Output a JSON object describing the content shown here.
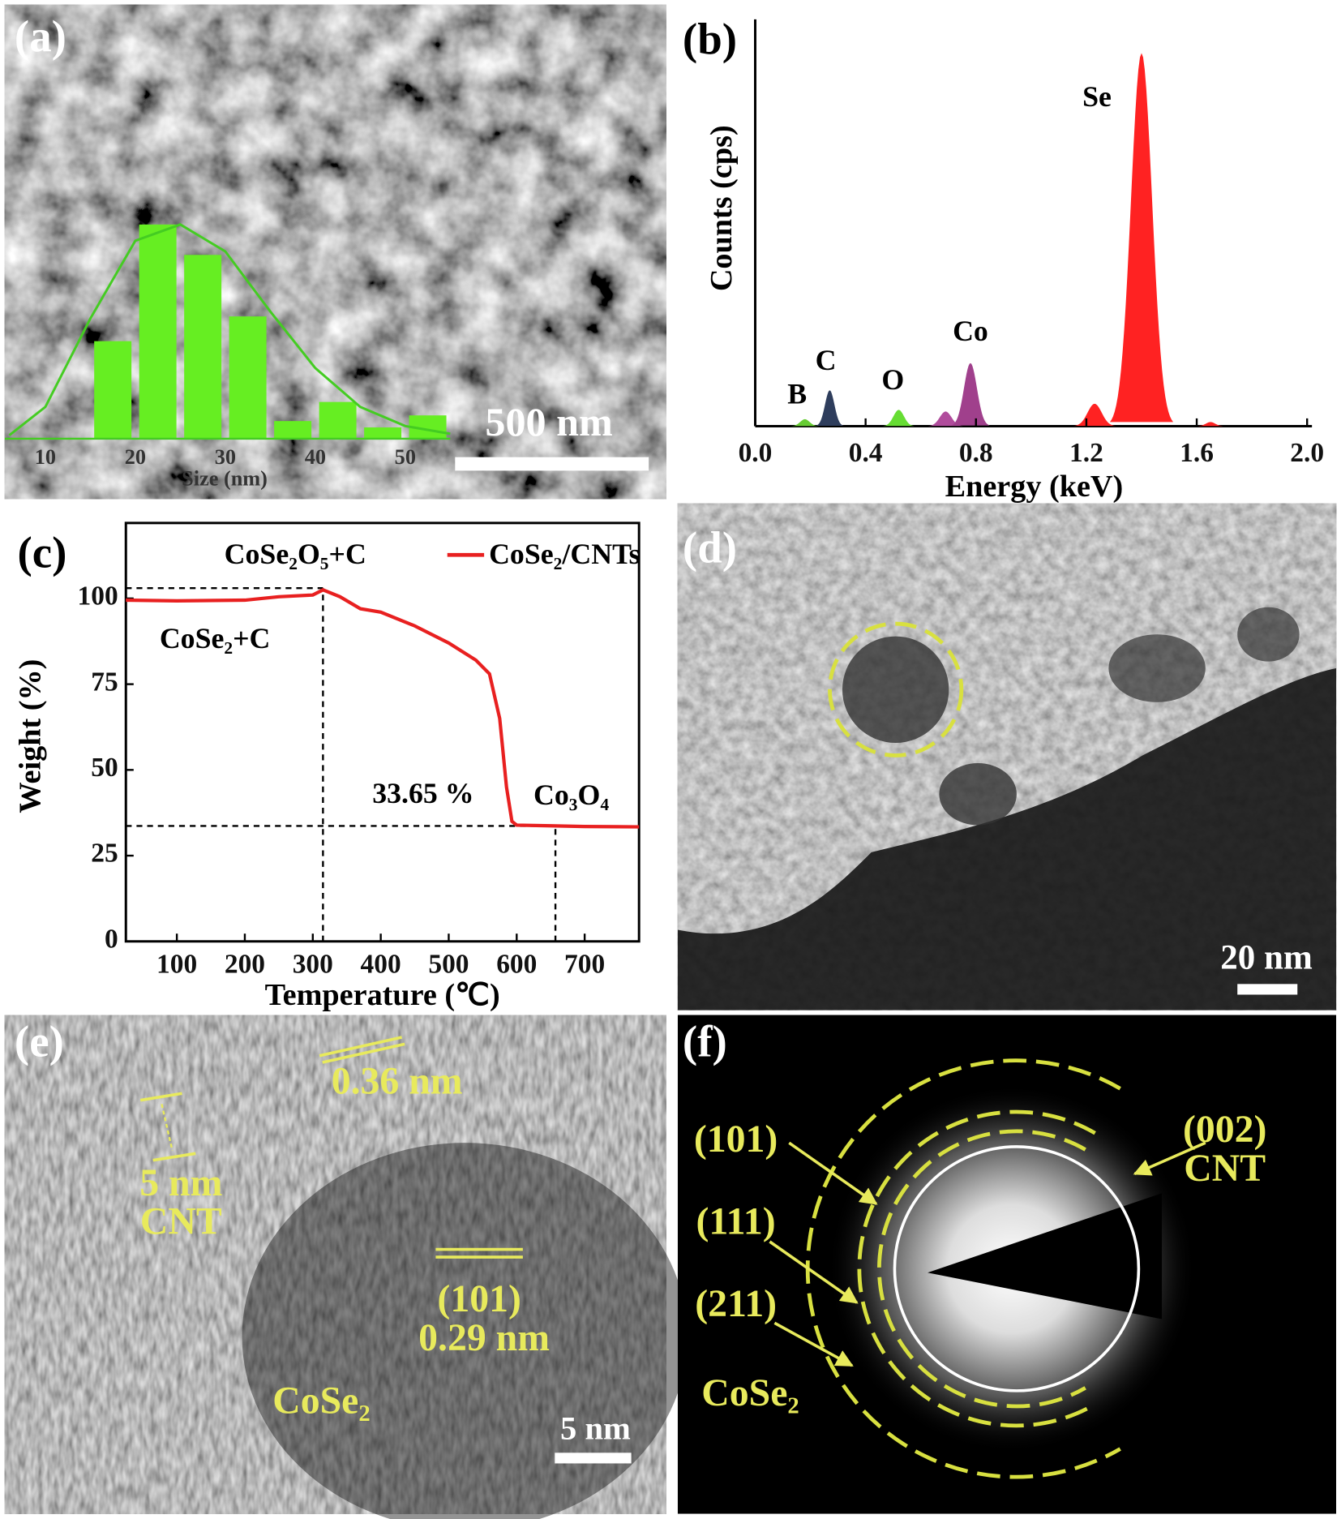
{
  "panel_labels": [
    "(a)",
    "(b)",
    "(c)",
    "(d)",
    "(e)",
    "(f)"
  ],
  "scale_bars": {
    "a": "500 nm",
    "d": "20 nm",
    "e": "5 nm"
  },
  "panel_e": {
    "annotations": [
      "0.36 nm",
      "5 nm",
      "CNT",
      "(101)",
      "0.29 nm",
      "CoSe₂"
    ]
  },
  "panel_f": {
    "annotations": [
      "(002)",
      "CNT",
      "(101)",
      "(111)",
      "(211)",
      "CoSe₂"
    ]
  },
  "chart_data": [
    {
      "type": "histogram",
      "xlabel": "Size (nm)",
      "bins": [
        15,
        20,
        25,
        30,
        35,
        40,
        45,
        50,
        55
      ],
      "values": [
        13.8,
        30.3,
        26,
        17.3,
        2.5,
        5.2,
        1.6,
        3.3
      ],
      "color": "#66ee22",
      "xlim": [
        5.5,
        55
      ],
      "xticks": [
        10,
        20,
        30,
        40,
        50
      ],
      "fit": {
        "x": [
          6,
          10,
          15,
          20,
          25,
          30,
          35,
          40,
          45,
          50,
          55
        ],
        "values": [
          0.5,
          4.5,
          17,
          28,
          30.3,
          26.5,
          18,
          10,
          4.5,
          1.8,
          0.7
        ],
        "color": "#44cc22"
      }
    },
    {
      "type": "spectrum",
      "xlabel": "Energy (keV)",
      "ylabel": "Counts (cps)",
      "xlim": [
        0,
        2
      ],
      "xticks": [
        {
          "value": 0,
          "label": "0.0"
        },
        0.4,
        0.8,
        1.2,
        1.6,
        {
          "value": 2,
          "label": "2.0"
        }
      ],
      "ylim": [
        0,
        100
      ],
      "peaks": [
        {
          "label": "B",
          "x": 0.18,
          "value": 1.7,
          "fwhm": 0.04,
          "color": "#66cc33"
        },
        {
          "label": "C",
          "x": 0.27,
          "value": 8.8,
          "fwhm": 0.04,
          "color": "#2e3d5c"
        },
        {
          "label": "O",
          "x": 0.52,
          "value": 4,
          "fwhm": 0.045,
          "color": "#66dd33"
        },
        {
          "label": null,
          "x": 0.69,
          "value": 3.6,
          "fwhm": 0.05,
          "color": "#b04c9c"
        },
        {
          "label": "Co",
          "x": 0.78,
          "value": 15.5,
          "fwhm": 0.055,
          "color": "#a0408c"
        },
        {
          "label": null,
          "x": 1.23,
          "value": 5.5,
          "fwhm": 0.06,
          "color": "#ff2222"
        },
        {
          "label": "Se",
          "x": 1.4,
          "value": 91.7,
          "fwhm": 0.09,
          "color": "#ff2222"
        },
        {
          "label": null,
          "x": 1.65,
          "value": 1,
          "fwhm": 0.04,
          "color": "#ff2222"
        }
      ]
    },
    {
      "type": "line",
      "xlabel": "Temperature (℃)",
      "ylabel": "Weight (%)",
      "x": [
        25,
        100,
        200,
        250,
        300,
        315,
        340,
        370,
        400,
        450,
        500,
        540,
        560,
        575,
        585,
        593,
        600,
        650,
        700,
        780
      ],
      "series": [
        {
          "name": "CoSe₂/CNTs",
          "color": "#e82020",
          "values": [
            99.5,
            99.3,
            99.5,
            100.5,
            101,
            102.5,
            100.5,
            97,
            96,
            92,
            87,
            82,
            78,
            65,
            45,
            35,
            33.9,
            33.7,
            33.5,
            33.4
          ]
        }
      ],
      "xlim": [
        25,
        780
      ],
      "xticks": [
        100,
        200,
        300,
        400,
        500,
        600,
        700
      ],
      "ylim": [
        0,
        122
      ],
      "yticks": [
        0,
        25,
        50,
        75,
        100
      ],
      "annotations": [
        "CoSe₂O₅+C",
        "CoSe₂+C",
        "Co₃O₄"
      ],
      "guides": {
        "onset_temp": 315,
        "onset_weight": 103,
        "end_temp": 657,
        "residual": {
          "value": 33.65,
          "label": "33.65 %"
        }
      }
    }
  ]
}
